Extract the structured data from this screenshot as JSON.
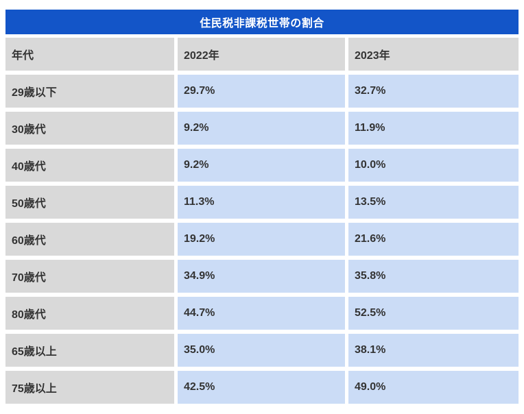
{
  "chart_data": {
    "type": "table",
    "title": "住民税非課税世帯の割合",
    "columns": [
      "年代",
      "2022年",
      "2023年"
    ],
    "rows": [
      {
        "label": "29歳以下",
        "values": [
          "29.7%",
          "32.7%"
        ]
      },
      {
        "label": "30歳代",
        "values": [
          "9.2%",
          "11.9%"
        ]
      },
      {
        "label": "40歳代",
        "values": [
          "9.2%",
          "10.0%"
        ]
      },
      {
        "label": "50歳代",
        "values": [
          "11.3%",
          "13.5%"
        ]
      },
      {
        "label": "60歳代",
        "values": [
          "19.2%",
          "21.6%"
        ]
      },
      {
        "label": "70歳代",
        "values": [
          "34.9%",
          "35.8%"
        ]
      },
      {
        "label": "80歳代",
        "values": [
          "44.7%",
          "52.5%"
        ]
      },
      {
        "label": "65歳以上",
        "values": [
          "35.0%",
          "38.1%"
        ]
      },
      {
        "label": "75歳以上",
        "values": [
          "42.5%",
          "49.0%"
        ]
      }
    ],
    "layout": {
      "legend": "none",
      "grid": "off",
      "header_position": "top",
      "label_column_position": "left"
    },
    "colors": {
      "page_bg": "#ffffff",
      "title_bg": "#1355c8",
      "title_text": "#ffffff",
      "header_bg": "#d9d9d9",
      "value_bg": "#cbdcf6",
      "cell_text": "#333333"
    }
  }
}
